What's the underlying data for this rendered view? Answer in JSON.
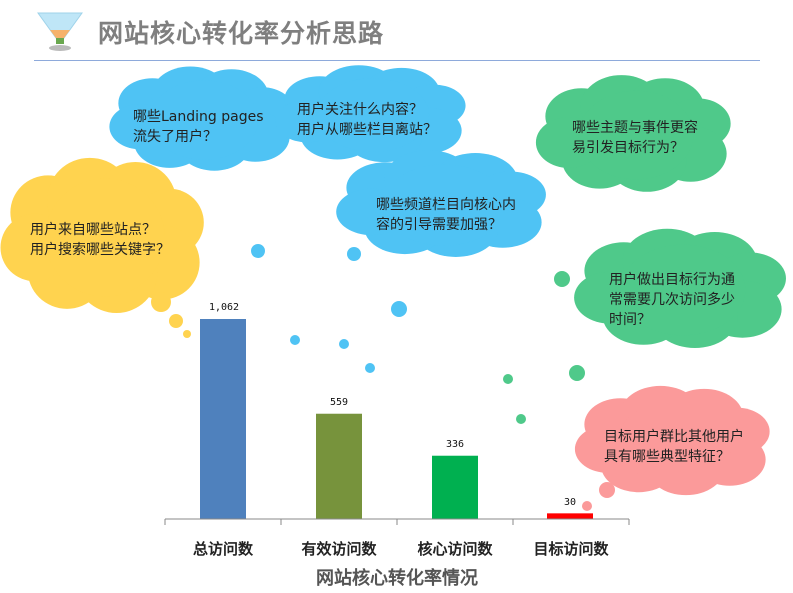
{
  "header": {
    "title": "网站核心转化率分析思路",
    "icon": "funnel-icon"
  },
  "chart_data": {
    "type": "bar",
    "xlabel": "网站核心转化率情况",
    "categories": [
      "总访问数",
      "有效访问数",
      "核心访问数",
      "目标访问数"
    ],
    "values": [
      1062,
      559,
      336,
      30
    ],
    "value_labels": [
      "1,062",
      "559",
      "336",
      "30"
    ],
    "colors": [
      "#4f81bd",
      "#77933c",
      "#00b050",
      "#ff0000"
    ],
    "grid": false,
    "ylim": [
      0,
      1062
    ]
  },
  "callouts": [
    {
      "color": "#ffd34f",
      "lines": [
        "用户来自哪些站点？",
        "用户搜索哪些关键字？"
      ]
    },
    {
      "color": "#4fc3f4",
      "lines": [
        "哪些Landing pages",
        "流失了用户？"
      ]
    },
    {
      "color": "#4fc3f4",
      "lines": [
        "用户关注什么内容？",
        "用户从哪些栏目离站？"
      ]
    },
    {
      "color": "#4fc3f4",
      "lines": [
        "哪些频道栏目向核心内",
        "容的引导需要加强？"
      ]
    },
    {
      "color": "#4fc98a",
      "lines": [
        "哪些主题与事件更容",
        "易引发目标行为？"
      ]
    },
    {
      "color": "#4fc98a",
      "lines": [
        "用户做出目标行为通",
        "常需要几次访问多少",
        "时间？"
      ]
    },
    {
      "color": "#fb9a9a",
      "lines": [
        "目标用户群比其他用户",
        "具有哪些典型特征？"
      ]
    }
  ]
}
